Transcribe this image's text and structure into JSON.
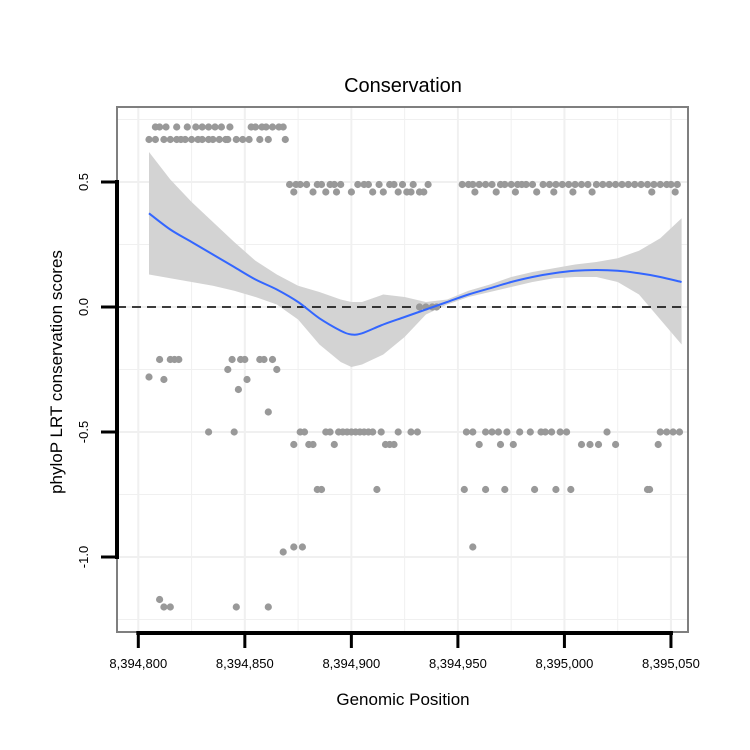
{
  "chart_data": {
    "type": "scatter",
    "title": "Conservation",
    "xlabel": "Genomic Position",
    "ylabel": "phyloP LRT conservation scores",
    "xlim": [
      8394790,
      8395058
    ],
    "ylim": [
      -1.3,
      0.8
    ],
    "x_ticks": [
      {
        "value": 8394800,
        "label": "8,394,800"
      },
      {
        "value": 8394850,
        "label": "8,394,850"
      },
      {
        "value": 8394900,
        "label": "8,394,900"
      },
      {
        "value": 8394950,
        "label": "8,394,950"
      },
      {
        "value": 8395000,
        "label": "8,395,000"
      },
      {
        "value": 8395050,
        "label": "8,395,050"
      }
    ],
    "y_ticks": [
      {
        "value": -1.0,
        "label": "-1.0"
      },
      {
        "value": -0.5,
        "label": "-0.5"
      },
      {
        "value": 0.0,
        "label": "0.0"
      },
      {
        "value": 0.5,
        "label": "0.5"
      }
    ],
    "colors": {
      "points": "#999999",
      "smooth_line": "#3366ff",
      "ribbon": "#d3d3d3",
      "grid": "#f0f0f0",
      "panel_border": "#7f7f7f",
      "reference_line": "#000000"
    },
    "reference_line": {
      "y": 0.0,
      "style": "dashed"
    },
    "points": [
      [
        8394805,
        0.67
      ],
      [
        8394808,
        0.67
      ],
      [
        8394808,
        0.72
      ],
      [
        8394810,
        0.72
      ],
      [
        8394812,
        0.67
      ],
      [
        8394813,
        0.72
      ],
      [
        8394815,
        0.67
      ],
      [
        8394818,
        0.72
      ],
      [
        8394818,
        0.67
      ],
      [
        8394820,
        0.67
      ],
      [
        8394822,
        0.67
      ],
      [
        8394823,
        0.72
      ],
      [
        8394825,
        0.67
      ],
      [
        8394827,
        0.72
      ],
      [
        8394828,
        0.67
      ],
      [
        8394830,
        0.67
      ],
      [
        8394830,
        0.72
      ],
      [
        8394833,
        0.67
      ],
      [
        8394833,
        0.72
      ],
      [
        8394835,
        0.67
      ],
      [
        8394836,
        0.72
      ],
      [
        8394838,
        0.67
      ],
      [
        8394839,
        0.72
      ],
      [
        8394841,
        0.67
      ],
      [
        8394842,
        0.67
      ],
      [
        8394843,
        0.72
      ],
      [
        8394846,
        0.67
      ],
      [
        8394849,
        0.67
      ],
      [
        8394852,
        0.67
      ],
      [
        8394853,
        0.72
      ],
      [
        8394855,
        0.72
      ],
      [
        8394857,
        0.67
      ],
      [
        8394858,
        0.72
      ],
      [
        8394860,
        0.72
      ],
      [
        8394861,
        0.67
      ],
      [
        8394863,
        0.72
      ],
      [
        8394866,
        0.72
      ],
      [
        8394868,
        0.72
      ],
      [
        8394869,
        0.67
      ],
      [
        8394871,
        0.49
      ],
      [
        8394873,
        0.46
      ],
      [
        8394874,
        0.49
      ],
      [
        8394876,
        0.49
      ],
      [
        8394879,
        0.49
      ],
      [
        8394882,
        0.46
      ],
      [
        8394884,
        0.49
      ],
      [
        8394886,
        0.49
      ],
      [
        8394888,
        0.46
      ],
      [
        8394890,
        0.49
      ],
      [
        8394892,
        0.49
      ],
      [
        8394893,
        0.46
      ],
      [
        8394895,
        0.49
      ],
      [
        8394900,
        0.46
      ],
      [
        8394903,
        0.49
      ],
      [
        8394906,
        0.49
      ],
      [
        8394908,
        0.49
      ],
      [
        8394910,
        0.46
      ],
      [
        8394913,
        0.49
      ],
      [
        8394915,
        0.46
      ],
      [
        8394918,
        0.49
      ],
      [
        8394920,
        0.49
      ],
      [
        8394922,
        0.46
      ],
      [
        8394924,
        0.49
      ],
      [
        8394926,
        0.46
      ],
      [
        8394928,
        0.46
      ],
      [
        8394929,
        0.49
      ],
      [
        8394932,
        0.46
      ],
      [
        8394934,
        0.46
      ],
      [
        8394936,
        0.49
      ],
      [
        8394952,
        0.49
      ],
      [
        8394955,
        0.49
      ],
      [
        8394957,
        0.49
      ],
      [
        8394958,
        0.46
      ],
      [
        8394960,
        0.49
      ],
      [
        8394963,
        0.49
      ],
      [
        8394966,
        0.49
      ],
      [
        8394968,
        0.46
      ],
      [
        8394970,
        0.49
      ],
      [
        8394972,
        0.49
      ],
      [
        8394975,
        0.49
      ],
      [
        8394977,
        0.46
      ],
      [
        8394978,
        0.49
      ],
      [
        8394980,
        0.49
      ],
      [
        8394982,
        0.49
      ],
      [
        8394985,
        0.49
      ],
      [
        8394987,
        0.46
      ],
      [
        8394990,
        0.49
      ],
      [
        8394993,
        0.49
      ],
      [
        8394995,
        0.46
      ],
      [
        8394996,
        0.49
      ],
      [
        8394999,
        0.49
      ],
      [
        8395002,
        0.49
      ],
      [
        8395004,
        0.46
      ],
      [
        8395005,
        0.49
      ],
      [
        8395008,
        0.49
      ],
      [
        8395011,
        0.49
      ],
      [
        8395013,
        0.46
      ],
      [
        8395015,
        0.49
      ],
      [
        8395018,
        0.49
      ],
      [
        8395021,
        0.49
      ],
      [
        8395024,
        0.49
      ],
      [
        8395027,
        0.49
      ],
      [
        8395030,
        0.49
      ],
      [
        8395033,
        0.49
      ],
      [
        8395036,
        0.49
      ],
      [
        8395039,
        0.49
      ],
      [
        8395041,
        0.46
      ],
      [
        8395042,
        0.49
      ],
      [
        8395045,
        0.49
      ],
      [
        8395048,
        0.49
      ],
      [
        8395050,
        0.49
      ],
      [
        8395052,
        0.46
      ],
      [
        8395053,
        0.49
      ],
      [
        8394932,
        0.0
      ],
      [
        8394935,
        0.0
      ],
      [
        8394938,
        0.0
      ],
      [
        8394940,
        0.0
      ],
      [
        8394805,
        -0.28
      ],
      [
        8394810,
        -0.21
      ],
      [
        8394812,
        -0.29
      ],
      [
        8394815,
        -0.21
      ],
      [
        8394817,
        -0.21
      ],
      [
        8394819,
        -0.21
      ],
      [
        8394833,
        -0.5
      ],
      [
        8394842,
        -0.25
      ],
      [
        8394844,
        -0.21
      ],
      [
        8394845,
        -0.5
      ],
      [
        8394847,
        -0.33
      ],
      [
        8394848,
        -0.21
      ],
      [
        8394850,
        -0.21
      ],
      [
        8394851,
        -0.29
      ],
      [
        8394857,
        -0.21
      ],
      [
        8394859,
        -0.21
      ],
      [
        8394861,
        -0.42
      ],
      [
        8394863,
        -0.21
      ],
      [
        8394865,
        -0.25
      ],
      [
        8394873,
        -0.55
      ],
      [
        8394876,
        -0.5
      ],
      [
        8394878,
        -0.5
      ],
      [
        8394880,
        -0.55
      ],
      [
        8394882,
        -0.55
      ],
      [
        8394884,
        -0.73
      ],
      [
        8394886,
        -0.73
      ],
      [
        8394888,
        -0.5
      ],
      [
        8394890,
        -0.5
      ],
      [
        8394892,
        -0.55
      ],
      [
        8394894,
        -0.5
      ],
      [
        8394896,
        -0.5
      ],
      [
        8394898,
        -0.5
      ],
      [
        8394900,
        -0.5
      ],
      [
        8394902,
        -0.5
      ],
      [
        8394904,
        -0.5
      ],
      [
        8394906,
        -0.5
      ],
      [
        8394908,
        -0.5
      ],
      [
        8394910,
        -0.5
      ],
      [
        8394912,
        -0.73
      ],
      [
        8394914,
        -0.5
      ],
      [
        8394916,
        -0.55
      ],
      [
        8394918,
        -0.55
      ],
      [
        8394920,
        -0.55
      ],
      [
        8394922,
        -0.5
      ],
      [
        8394928,
        -0.5
      ],
      [
        8394931,
        -0.5
      ],
      [
        8394953,
        -0.73
      ],
      [
        8394954,
        -0.5
      ],
      [
        8394957,
        -0.5
      ],
      [
        8394960,
        -0.55
      ],
      [
        8394963,
        -0.73
      ],
      [
        8394963,
        -0.5
      ],
      [
        8394966,
        -0.5
      ],
      [
        8394969,
        -0.5
      ],
      [
        8394970,
        -0.55
      ],
      [
        8394972,
        -0.73
      ],
      [
        8394973,
        -0.5
      ],
      [
        8394976,
        -0.55
      ],
      [
        8394979,
        -0.5
      ],
      [
        8394984,
        -0.5
      ],
      [
        8394986,
        -0.73
      ],
      [
        8394989,
        -0.5
      ],
      [
        8394991,
        -0.5
      ],
      [
        8394994,
        -0.5
      ],
      [
        8394996,
        -0.73
      ],
      [
        8394998,
        -0.5
      ],
      [
        8395001,
        -0.5
      ],
      [
        8395003,
        -0.73
      ],
      [
        8395008,
        -0.55
      ],
      [
        8395012,
        -0.55
      ],
      [
        8395016,
        -0.55
      ],
      [
        8395020,
        -0.5
      ],
      [
        8395024,
        -0.55
      ],
      [
        8395039,
        -0.73
      ],
      [
        8395040,
        -0.73
      ],
      [
        8395044,
        -0.55
      ],
      [
        8395045,
        -0.5
      ],
      [
        8395048,
        -0.5
      ],
      [
        8395051,
        -0.5
      ],
      [
        8395054,
        -0.5
      ],
      [
        8394868,
        -0.98
      ],
      [
        8394873,
        -0.96
      ],
      [
        8394877,
        -0.96
      ],
      [
        8394957,
        -0.96
      ],
      [
        8394810,
        -1.17
      ],
      [
        8394812,
        -1.2
      ],
      [
        8394815,
        -1.2
      ],
      [
        8394846,
        -1.2
      ],
      [
        8394861,
        -1.2
      ]
    ],
    "smooth": {
      "x": [
        8394805,
        8394815,
        8394825,
        8394835,
        8394845,
        8394855,
        8394865,
        8394875,
        8394885,
        8394895,
        8394900,
        8394905,
        8394915,
        8394925,
        8394935,
        8394945,
        8394955,
        8394965,
        8394975,
        8394985,
        8394995,
        8395005,
        8395015,
        8395025,
        8395035,
        8395045,
        8395055
      ],
      "y": [
        0.375,
        0.31,
        0.26,
        0.21,
        0.16,
        0.11,
        0.07,
        0.02,
        -0.045,
        -0.095,
        -0.11,
        -0.105,
        -0.07,
        -0.04,
        -0.01,
        0.02,
        0.05,
        0.075,
        0.1,
        0.12,
        0.135,
        0.145,
        0.148,
        0.145,
        0.135,
        0.12,
        0.1
      ],
      "lower": [
        0.13,
        0.115,
        0.1,
        0.085,
        0.065,
        0.04,
        0.01,
        -0.05,
        -0.15,
        -0.22,
        -0.24,
        -0.23,
        -0.19,
        -0.12,
        -0.03,
        0.01,
        0.04,
        0.06,
        0.08,
        0.1,
        0.115,
        0.12,
        0.12,
        0.1,
        0.05,
        -0.05,
        -0.15
      ],
      "upper": [
        0.62,
        0.51,
        0.42,
        0.34,
        0.26,
        0.185,
        0.13,
        0.085,
        0.06,
        0.03,
        0.02,
        0.02,
        0.05,
        0.04,
        0.02,
        0.03,
        0.065,
        0.09,
        0.12,
        0.14,
        0.155,
        0.17,
        0.18,
        0.195,
        0.225,
        0.275,
        0.355
      ]
    }
  }
}
